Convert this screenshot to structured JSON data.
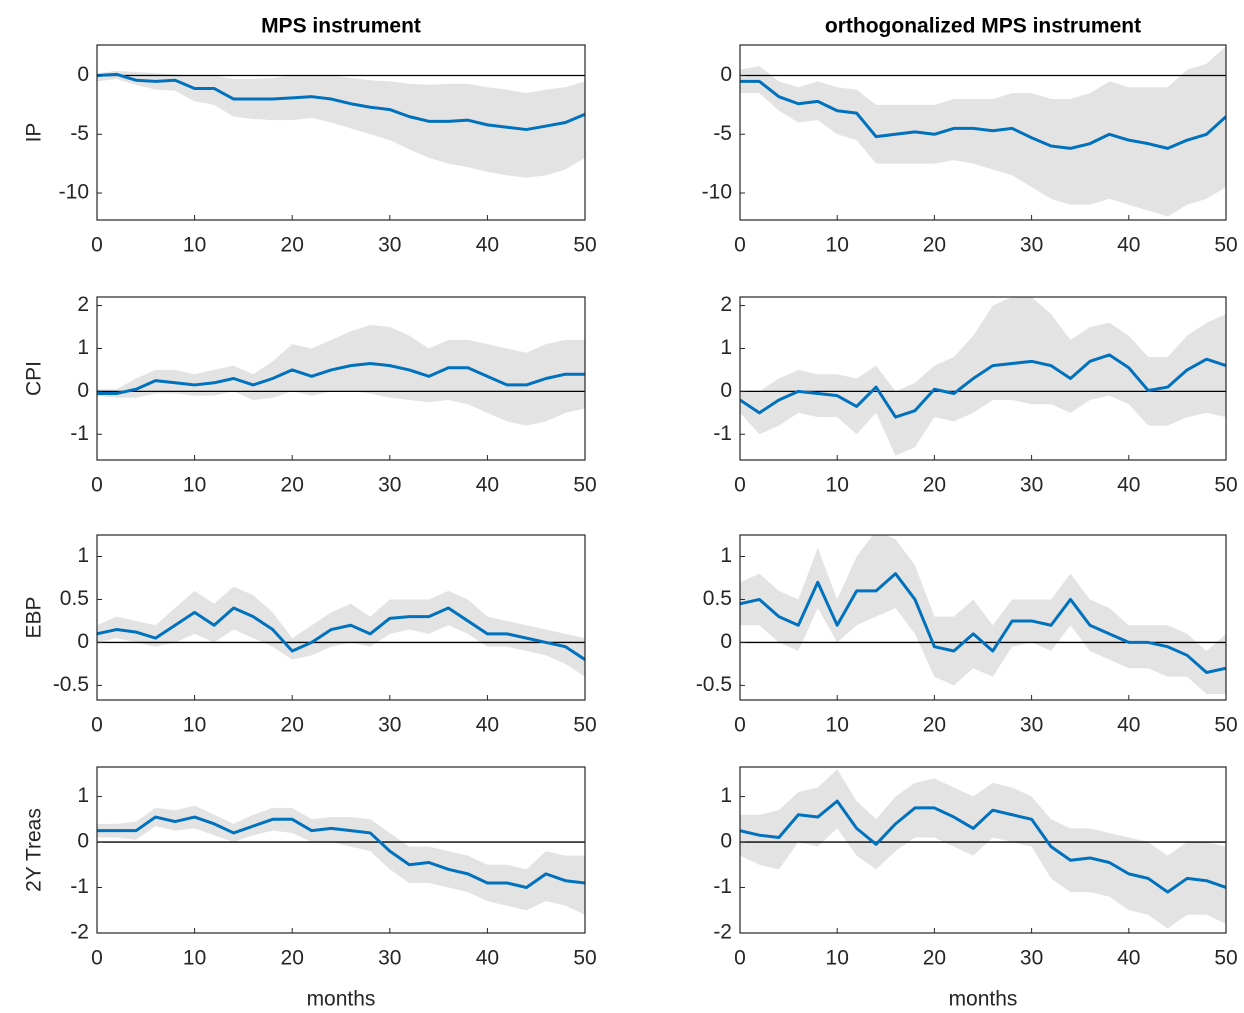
{
  "chart_data": [
    {
      "type": "line",
      "title": "MPS instrument",
      "ylabel": "IP",
      "x": [
        0,
        2,
        4,
        6,
        8,
        10,
        12,
        14,
        16,
        18,
        20,
        22,
        24,
        26,
        28,
        30,
        32,
        34,
        36,
        38,
        40,
        42,
        44,
        46,
        48,
        50
      ],
      "xlim": [
        0,
        50
      ],
      "xticks": [
        0,
        10,
        20,
        30,
        40,
        50
      ],
      "ylim": [
        -12.3,
        2.6
      ],
      "yticks": [
        -10,
        -5,
        0
      ],
      "hline": 0,
      "series": [
        {
          "color": "#0072bd",
          "values": [
            0,
            0.1,
            -0.4,
            -0.5,
            -0.4,
            -1.1,
            -1.1,
            -2.0,
            -2.0,
            -2.0,
            -1.9,
            -1.8,
            -2.0,
            -2.4,
            -2.7,
            -2.9,
            -3.5,
            -3.9,
            -3.9,
            -3.8,
            -4.2,
            -4.4,
            -4.6,
            -4.3,
            -4.0,
            -3.3
          ]
        }
      ],
      "band": {
        "color": "#e3e3e3",
        "lower": [
          -0.5,
          -0.3,
          -0.8,
          -1.2,
          -1.3,
          -2.2,
          -2.5,
          -3.5,
          -3.7,
          -3.8,
          -3.8,
          -3.6,
          -4.0,
          -4.5,
          -5.0,
          -5.5,
          -6.3,
          -7.0,
          -7.5,
          -7.8,
          -8.2,
          -8.5,
          -8.7,
          -8.5,
          -8.0,
          -7.0
        ],
        "upper": [
          0.2,
          0.4,
          0.3,
          0.2,
          0.1,
          0,
          0,
          -0.3,
          -0.3,
          -0.2,
          0,
          0,
          0,
          -0.2,
          -0.4,
          -0.5,
          -0.7,
          -0.8,
          -0.7,
          -0.7,
          -1.0,
          -1.2,
          -1.5,
          -1.2,
          -1.0,
          -0.5
        ]
      }
    },
    {
      "type": "line",
      "title": "orthogonalized MPS instrument",
      "x": [
        0,
        2,
        4,
        6,
        8,
        10,
        12,
        14,
        16,
        18,
        20,
        22,
        24,
        26,
        28,
        30,
        32,
        34,
        36,
        38,
        40,
        42,
        44,
        46,
        48,
        50
      ],
      "xlim": [
        0,
        50
      ],
      "xticks": [
        0,
        10,
        20,
        30,
        40,
        50
      ],
      "ylim": [
        -12.3,
        2.6
      ],
      "yticks": [
        -10,
        -5,
        0
      ],
      "hline": 0,
      "series": [
        {
          "color": "#0072bd",
          "values": [
            -0.5,
            -0.5,
            -1.8,
            -2.4,
            -2.2,
            -3.0,
            -3.2,
            -5.2,
            -5.0,
            -4.8,
            -5.0,
            -4.5,
            -4.5,
            -4.7,
            -4.5,
            -5.3,
            -6.0,
            -6.2,
            -5.8,
            -5.0,
            -5.5,
            -5.8,
            -6.2,
            -5.5,
            -5.0,
            -3.5
          ]
        }
      ],
      "band": {
        "color": "#e3e3e3",
        "lower": [
          -1.5,
          -1.5,
          -3.0,
          -4.0,
          -3.8,
          -5.0,
          -5.5,
          -7.5,
          -7.5,
          -7.5,
          -7.5,
          -7.2,
          -7.5,
          -8.0,
          -8.5,
          -9.5,
          -10.5,
          -11.0,
          -11.0,
          -10.5,
          -11.0,
          -11.5,
          -12.0,
          -11.0,
          -10.5,
          -9.5
        ],
        "upper": [
          0.5,
          0.8,
          -0.5,
          -1.0,
          -0.5,
          -1.0,
          -1.2,
          -2.5,
          -2.5,
          -2.5,
          -2.5,
          -2.0,
          -2.0,
          -2.0,
          -1.5,
          -1.5,
          -2.0,
          -2.0,
          -1.5,
          -0.5,
          -1.0,
          -1.0,
          -1.0,
          0.5,
          1.0,
          2.5
        ]
      }
    },
    {
      "type": "line",
      "ylabel": "CPI",
      "x": [
        0,
        2,
        4,
        6,
        8,
        10,
        12,
        14,
        16,
        18,
        20,
        22,
        24,
        26,
        28,
        30,
        32,
        34,
        36,
        38,
        40,
        42,
        44,
        46,
        48,
        50
      ],
      "xlim": [
        0,
        50
      ],
      "xticks": [
        0,
        10,
        20,
        30,
        40,
        50
      ],
      "ylim": [
        -1.6,
        2.2
      ],
      "yticks": [
        -1,
        0,
        1,
        2
      ],
      "hline": 0,
      "series": [
        {
          "color": "#0072bd",
          "values": [
            -0.05,
            -0.05,
            0.05,
            0.25,
            0.2,
            0.15,
            0.2,
            0.3,
            0.15,
            0.3,
            0.5,
            0.35,
            0.5,
            0.6,
            0.65,
            0.6,
            0.5,
            0.35,
            0.55,
            0.55,
            0.35,
            0.15,
            0.15,
            0.3,
            0.4,
            0.4
          ]
        }
      ],
      "band": {
        "color": "#e3e3e3",
        "lower": [
          -0.1,
          -0.15,
          -0.15,
          -0.05,
          -0.05,
          -0.1,
          -0.1,
          0,
          -0.2,
          -0.15,
          0,
          -0.1,
          0,
          0,
          -0.05,
          -0.15,
          -0.2,
          -0.25,
          -0.2,
          -0.3,
          -0.5,
          -0.7,
          -0.8,
          -0.7,
          -0.5,
          -0.4
        ],
        "upper": [
          0.05,
          0.05,
          0.3,
          0.5,
          0.5,
          0.4,
          0.5,
          0.6,
          0.4,
          0.7,
          1.1,
          1.0,
          1.2,
          1.4,
          1.55,
          1.5,
          1.3,
          1.0,
          1.2,
          1.2,
          1.1,
          1.0,
          0.9,
          1.1,
          1.2,
          1.2
        ]
      }
    },
    {
      "type": "line",
      "x": [
        0,
        2,
        4,
        6,
        8,
        10,
        12,
        14,
        16,
        18,
        20,
        22,
        24,
        26,
        28,
        30,
        32,
        34,
        36,
        38,
        40,
        42,
        44,
        46,
        48,
        50
      ],
      "xlim": [
        0,
        50
      ],
      "xticks": [
        0,
        10,
        20,
        30,
        40,
        50
      ],
      "ylim": [
        -1.6,
        2.2
      ],
      "yticks": [
        -1,
        0,
        1,
        2
      ],
      "hline": 0,
      "series": [
        {
          "color": "#0072bd",
          "values": [
            -0.2,
            -0.5,
            -0.2,
            0,
            -0.05,
            -0.1,
            -0.35,
            0.1,
            -0.6,
            -0.45,
            0.05,
            -0.05,
            0.3,
            0.6,
            0.65,
            0.7,
            0.6,
            0.3,
            0.7,
            0.85,
            0.55,
            0.02,
            0.1,
            0.5,
            0.75,
            0.6
          ]
        }
      ],
      "band": {
        "color": "#e3e3e3",
        "lower": [
          -0.5,
          -1.0,
          -0.8,
          -0.5,
          -0.6,
          -0.6,
          -1.0,
          -0.5,
          -1.5,
          -1.3,
          -0.6,
          -0.7,
          -0.5,
          -0.2,
          -0.2,
          -0.3,
          -0.3,
          -0.5,
          -0.2,
          -0.1,
          -0.3,
          -0.8,
          -0.8,
          -0.6,
          -0.5,
          -0.6
        ],
        "upper": [
          0,
          0,
          0.3,
          0.5,
          0.4,
          0.4,
          0.3,
          0.6,
          0,
          0.2,
          0.6,
          0.8,
          1.3,
          2.0,
          2.2,
          2.2,
          1.8,
          1.2,
          1.5,
          1.6,
          1.3,
          0.8,
          0.8,
          1.3,
          1.6,
          1.8
        ]
      }
    },
    {
      "type": "line",
      "ylabel": "EBP",
      "x": [
        0,
        2,
        4,
        6,
        8,
        10,
        12,
        14,
        16,
        18,
        20,
        22,
        24,
        26,
        28,
        30,
        32,
        34,
        36,
        38,
        40,
        42,
        44,
        46,
        48,
        50
      ],
      "xlim": [
        0,
        50
      ],
      "xticks": [
        0,
        10,
        20,
        30,
        40,
        50
      ],
      "ylim": [
        -0.67,
        1.25
      ],
      "yticks": [
        -0.5,
        0,
        0.5,
        1
      ],
      "hline": 0,
      "series": [
        {
          "color": "#0072bd",
          "values": [
            0.1,
            0.15,
            0.12,
            0.05,
            0.2,
            0.35,
            0.2,
            0.4,
            0.3,
            0.15,
            -0.1,
            0,
            0.15,
            0.2,
            0.1,
            0.28,
            0.3,
            0.3,
            0.4,
            0.25,
            0.1,
            0.1,
            0.05,
            0,
            -0.05,
            -0.2
          ]
        }
      ],
      "band": {
        "color": "#e3e3e3",
        "lower": [
          0,
          0.05,
          0,
          -0.05,
          0,
          0.1,
          0,
          0.15,
          0.05,
          -0.05,
          -0.2,
          -0.15,
          -0.05,
          0,
          -0.05,
          0.1,
          0.15,
          0.1,
          0.2,
          0.1,
          -0.05,
          -0.05,
          -0.1,
          -0.15,
          -0.25,
          -0.4
        ],
        "upper": [
          0.2,
          0.3,
          0.25,
          0.2,
          0.4,
          0.6,
          0.45,
          0.65,
          0.55,
          0.35,
          0.05,
          0.2,
          0.35,
          0.45,
          0.3,
          0.5,
          0.5,
          0.5,
          0.6,
          0.5,
          0.3,
          0.25,
          0.2,
          0.15,
          0.1,
          0.05
        ]
      }
    },
    {
      "type": "line",
      "x": [
        0,
        2,
        4,
        6,
        8,
        10,
        12,
        14,
        16,
        18,
        20,
        22,
        24,
        26,
        28,
        30,
        32,
        34,
        36,
        38,
        40,
        42,
        44,
        46,
        48,
        50
      ],
      "xlim": [
        0,
        50
      ],
      "xticks": [
        0,
        10,
        20,
        30,
        40,
        50
      ],
      "ylim": [
        -0.67,
        1.25
      ],
      "yticks": [
        -0.5,
        0,
        0.5,
        1
      ],
      "hline": 0,
      "series": [
        {
          "color": "#0072bd",
          "values": [
            0.45,
            0.5,
            0.3,
            0.2,
            0.7,
            0.2,
            0.6,
            0.6,
            0.8,
            0.5,
            -0.05,
            -0.1,
            0.1,
            -0.1,
            0.25,
            0.25,
            0.2,
            0.5,
            0.2,
            0.1,
            0,
            0,
            -0.05,
            -0.15,
            -0.35,
            -0.3
          ]
        }
      ],
      "band": {
        "color": "#e3e3e3",
        "lower": [
          0.2,
          0.2,
          0,
          -0.1,
          0.4,
          0,
          0.2,
          0.3,
          0.4,
          0.1,
          -0.4,
          -0.5,
          -0.3,
          -0.4,
          -0.05,
          0,
          -0.1,
          0.2,
          -0.1,
          -0.2,
          -0.3,
          -0.3,
          -0.4,
          -0.4,
          -0.6,
          -0.6
        ],
        "upper": [
          0.7,
          0.8,
          0.6,
          0.5,
          1.1,
          0.5,
          1.0,
          1.3,
          1.2,
          0.9,
          0.3,
          0.3,
          0.5,
          0.2,
          0.5,
          0.5,
          0.5,
          0.8,
          0.5,
          0.4,
          0.2,
          0.2,
          0.2,
          0.1,
          -0.1,
          0.1
        ]
      }
    },
    {
      "type": "line",
      "ylabel": "2Y Treas",
      "xlabel": "months",
      "x": [
        0,
        2,
        4,
        6,
        8,
        10,
        12,
        14,
        16,
        18,
        20,
        22,
        24,
        26,
        28,
        30,
        32,
        34,
        36,
        38,
        40,
        42,
        44,
        46,
        48,
        50
      ],
      "xlim": [
        0,
        50
      ],
      "xticks": [
        0,
        10,
        20,
        30,
        40,
        50
      ],
      "ylim": [
        -2,
        1.65
      ],
      "yticks": [
        -2,
        -1,
        0,
        1
      ],
      "hline": 0,
      "series": [
        {
          "color": "#0072bd",
          "values": [
            0.25,
            0.25,
            0.25,
            0.55,
            0.45,
            0.55,
            0.4,
            0.2,
            0.35,
            0.5,
            0.5,
            0.25,
            0.3,
            0.25,
            0.2,
            -0.2,
            -0.5,
            -0.45,
            -0.6,
            -0.7,
            -0.9,
            -0.9,
            -1.0,
            -0.7,
            -0.85,
            -0.9
          ]
        }
      ],
      "band": {
        "color": "#e3e3e3",
        "lower": [
          0.1,
          0.1,
          0.05,
          0.35,
          0.25,
          0.3,
          0.15,
          0,
          0.15,
          0.25,
          0.2,
          0,
          0,
          -0.1,
          -0.2,
          -0.6,
          -0.9,
          -0.9,
          -1.0,
          -1.1,
          -1.3,
          -1.4,
          -1.5,
          -1.3,
          -1.4,
          -1.6
        ],
        "upper": [
          0.4,
          0.4,
          0.45,
          0.75,
          0.7,
          0.8,
          0.6,
          0.4,
          0.6,
          0.75,
          0.75,
          0.5,
          0.55,
          0.55,
          0.5,
          0.2,
          -0.1,
          -0.1,
          -0.2,
          -0.3,
          -0.5,
          -0.5,
          -0.6,
          -0.2,
          -0.3,
          -0.3
        ]
      }
    },
    {
      "type": "line",
      "xlabel": "months",
      "x": [
        0,
        2,
        4,
        6,
        8,
        10,
        12,
        14,
        16,
        18,
        20,
        22,
        24,
        26,
        28,
        30,
        32,
        34,
        36,
        38,
        40,
        42,
        44,
        46,
        48,
        50
      ],
      "xlim": [
        0,
        50
      ],
      "xticks": [
        0,
        10,
        20,
        30,
        40,
        50
      ],
      "ylim": [
        -2,
        1.65
      ],
      "yticks": [
        -2,
        -1,
        0,
        1
      ],
      "hline": 0,
      "series": [
        {
          "color": "#0072bd",
          "values": [
            0.25,
            0.15,
            0.1,
            0.6,
            0.55,
            0.9,
            0.3,
            -0.05,
            0.4,
            0.75,
            0.75,
            0.55,
            0.3,
            0.7,
            0.6,
            0.5,
            -0.1,
            -0.4,
            -0.35,
            -0.45,
            -0.7,
            -0.8,
            -1.1,
            -0.8,
            -0.85,
            -1.0
          ]
        }
      ],
      "band": {
        "color": "#e3e3e3",
        "lower": [
          -0.3,
          -0.5,
          -0.6,
          0,
          -0.1,
          0.3,
          -0.3,
          -0.6,
          -0.2,
          0.1,
          0.1,
          -0.1,
          -0.3,
          0.1,
          0,
          -0.1,
          -0.8,
          -1.1,
          -1.1,
          -1.2,
          -1.5,
          -1.6,
          -1.9,
          -1.6,
          -1.6,
          -1.8
        ],
        "upper": [
          0.6,
          0.6,
          0.7,
          1.1,
          1.2,
          1.6,
          0.9,
          0.5,
          1.0,
          1.3,
          1.4,
          1.2,
          1.0,
          1.3,
          1.2,
          1.0,
          0.5,
          0.3,
          0.3,
          0.2,
          0.1,
          0,
          -0.3,
          0,
          0,
          -0.1
        ]
      }
    }
  ]
}
